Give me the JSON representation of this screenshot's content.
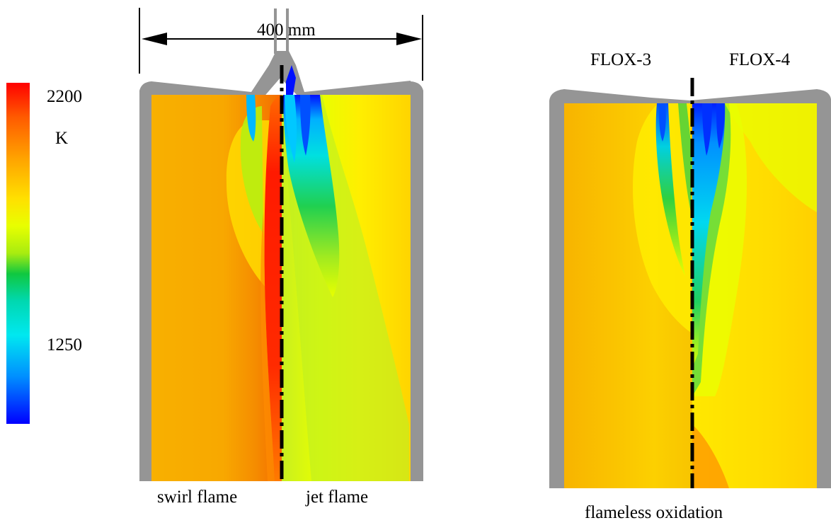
{
  "colorbar": {
    "max_label": "2200",
    "unit_label": "K",
    "mid_label": "1250",
    "colors": [
      "#ff0000",
      "#ff3a00",
      "#ff6a00",
      "#ff9600",
      "#ffbe00",
      "#ffe600",
      "#ffff00",
      "#d9ff00",
      "#b0f000",
      "#80e000",
      "#40d040",
      "#00c860",
      "#00d8b0",
      "#00e8e8",
      "#00c8ff",
      "#0080ff",
      "#0000ff"
    ]
  },
  "dimension": {
    "label": "400 mm"
  },
  "captions": {
    "swirl": "swirl flame",
    "jet": "jet flame",
    "flameless": "flameless oxidation",
    "flox3": "FLOX-3",
    "flox4": "FLOX-4"
  },
  "palette": {
    "wall": "#959595",
    "hot": "#ff0000",
    "warm": "#f7ad00",
    "mild": "#ffe600",
    "green": "#4cd94c",
    "cyan": "#00d8e8",
    "blue": "#0000ff",
    "axis": "#000000"
  }
}
